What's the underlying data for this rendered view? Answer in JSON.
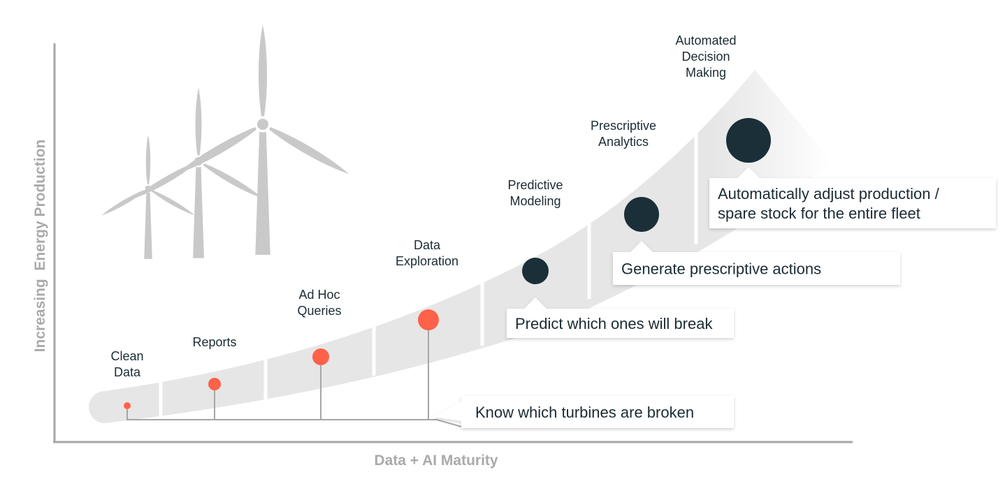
{
  "axes": {
    "x_title": "Data + AI Maturity",
    "y_title": "Increasing  Energy Production"
  },
  "stages": [
    {
      "lines": [
        "Clean",
        "Data"
      ],
      "color": "#ff6149",
      "level": 1
    },
    {
      "lines": [
        "Reports"
      ],
      "color": "#ff6149",
      "level": 2
    },
    {
      "lines": [
        "Ad Hoc",
        "Queries"
      ],
      "color": "#ff6149",
      "level": 3
    },
    {
      "lines": [
        "Data",
        "Exploration"
      ],
      "color": "#ff6149",
      "level": 4
    },
    {
      "lines": [
        "Predictive",
        "Modeling"
      ],
      "color": "#1b2f38",
      "level": 5
    },
    {
      "lines": [
        "Prescriptive",
        "Analytics"
      ],
      "color": "#1b2f38",
      "level": 6
    },
    {
      "lines": [
        "Automated",
        "Decision",
        "Making"
      ],
      "color": "#1b2f38",
      "level": 7
    }
  ],
  "callouts": [
    {
      "lines": [
        "Know which turbines are broken"
      ]
    },
    {
      "lines": [
        "Predict which ones will break"
      ]
    },
    {
      "lines": [
        "Generate prescriptive actions"
      ]
    },
    {
      "lines": [
        "Automatically adjust production /",
        "spare stock for the entire fleet"
      ]
    }
  ],
  "colors": {
    "band": "#e6e6e6",
    "turbine": "#c9c9c9",
    "axis": "#a6a6a6",
    "text": "#1b2b34",
    "accent_orange": "#ff6149",
    "accent_dark": "#1b2f38"
  },
  "illustration": {
    "icon": "wind-turbines-icon",
    "count": 3
  }
}
